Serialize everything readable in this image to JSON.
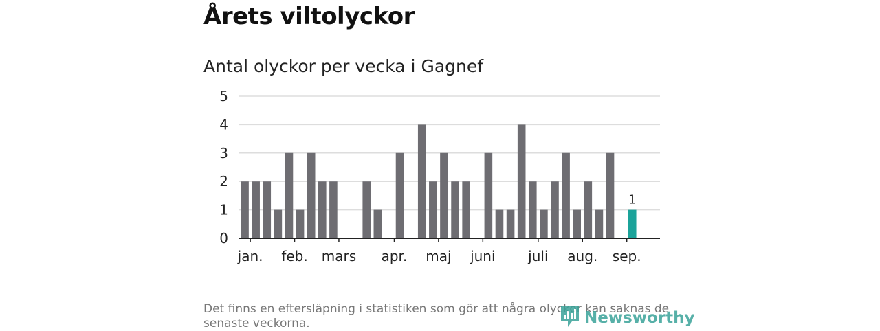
{
  "header": {
    "title": "Årets viltolyckor"
  },
  "chart_title": "Antal olyckor per vecka i Gagnef",
  "footnote": "Det finns en eftersläpning i statistiken som gör att några olyckor kan saknas de senaste veckorna.",
  "brand": {
    "name": "Newsworthy",
    "color": "#3aa399"
  },
  "colors": {
    "bar": "#6e6d72",
    "highlight": "#1ba39a",
    "grid": "#dddddd",
    "axis": "#222222"
  },
  "chart_data": {
    "type": "bar",
    "x": [
      1,
      2,
      3,
      4,
      5,
      6,
      7,
      8,
      9,
      10,
      11,
      12,
      13,
      14,
      15,
      16,
      17,
      18,
      19,
      20,
      21,
      22,
      23,
      24,
      25,
      26,
      27,
      28,
      29,
      30,
      31,
      32,
      33,
      34,
      35,
      36,
      37,
      38
    ],
    "values": [
      2,
      2,
      2,
      1,
      3,
      1,
      3,
      2,
      2,
      0,
      0,
      2,
      1,
      0,
      3,
      0,
      4,
      2,
      3,
      2,
      2,
      0,
      3,
      1,
      1,
      4,
      2,
      1,
      2,
      3,
      1,
      2,
      1,
      3,
      0,
      1,
      null,
      null
    ],
    "highlight_index": 35,
    "highlight_label": "1",
    "ylim": [
      0,
      5
    ],
    "yticks": [
      "0",
      "1",
      "2",
      "3",
      "4",
      "5"
    ],
    "xtick_labels": [
      {
        "label": "jan.",
        "at": 1.5
      },
      {
        "label": "feb.",
        "at": 5.5
      },
      {
        "label": "mars",
        "at": 9.5
      },
      {
        "label": "apr.",
        "at": 14.5
      },
      {
        "label": "maj",
        "at": 18.5
      },
      {
        "label": "juni",
        "at": 22.5
      },
      {
        "label": "juli",
        "at": 27.5
      },
      {
        "label": "aug.",
        "at": 31.5
      },
      {
        "label": "sep.",
        "at": 35.5
      }
    ],
    "xtick_marks": [
      1.5,
      5.5,
      9.5,
      14.5,
      18.5,
      22.5,
      27.5,
      31.5,
      35.5
    ],
    "grid": true,
    "xlabel": "",
    "ylabel": ""
  }
}
